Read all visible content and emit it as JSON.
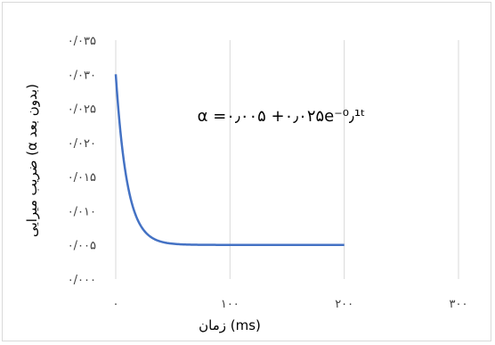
{
  "chart_data": {
    "type": "line",
    "xlabel": "زمان (ms)",
    "ylabel": "ضریب میرایی (α بدون بعد)",
    "xlim": [
      0,
      300
    ],
    "ylim": [
      0,
      0.035
    ],
    "x_ticks": [
      0,
      100,
      200,
      300
    ],
    "y_ticks": [
      0,
      0.005,
      0.01,
      0.015,
      0.02,
      0.025,
      0.03,
      0.035
    ],
    "x_tick_labels": [
      "۰",
      "۱۰۰",
      "۲۰۰",
      "۳۰۰"
    ],
    "y_tick_labels": [
      "۰/۰۰۰",
      "۰/۰۰۵",
      "۰/۰۱۰",
      "۰/۰۱۵",
      "۰/۰۲۰",
      "۰/۰۲۵",
      "۰/۰۳۰",
      "۰/۰۳۵"
    ],
    "grid": "vertical",
    "legend": "none",
    "annotation": "α =۰٫۰۰۵ +۰٫۰۲۵e⁻⁰٫¹ᵗ",
    "series": [
      {
        "color": "#4472c4",
        "formula": "0.005 + 0.025*exp(-0.1*t)",
        "x": [
          0,
          5,
          10,
          15,
          20,
          25,
          30,
          35,
          40,
          50,
          60,
          80,
          100,
          150,
          200
        ],
        "y": [
          0.03,
          0.02016,
          0.0142,
          0.01058,
          0.00838,
          0.00705,
          0.00624,
          0.00575,
          0.00546,
          0.00517,
          0.00506,
          0.00501,
          0.005,
          0.005,
          0.005
        ]
      }
    ]
  }
}
